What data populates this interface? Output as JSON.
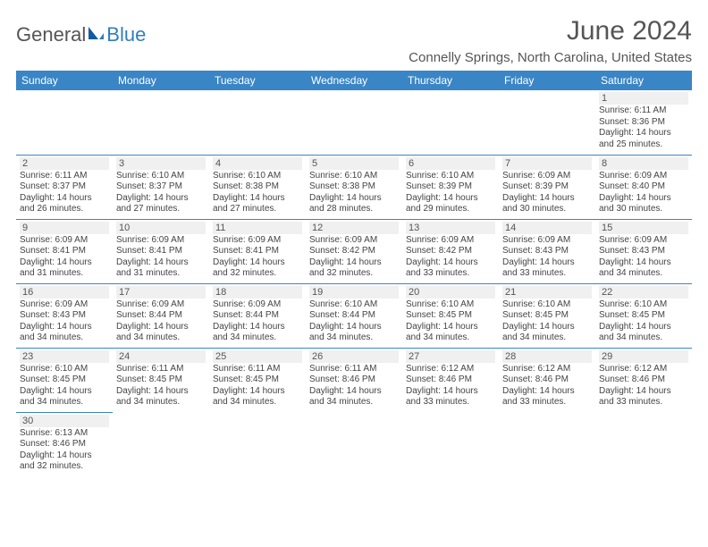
{
  "logo": {
    "text_general": "General",
    "text_blue": "Blue"
  },
  "title": "June 2024",
  "location": "Connelly Springs, North Carolina, United States",
  "colors": {
    "header_bg": "#3a85c6",
    "header_text": "#ffffff",
    "border": "#3a85c6",
    "daynum_bg": "#f0f0f0",
    "text": "#444444",
    "title_text": "#555555",
    "logo_blue": "#2f7ec0"
  },
  "typography": {
    "title_fontsize": 30,
    "location_fontsize": 15,
    "dayheader_fontsize": 12,
    "daynum_fontsize": 11,
    "info_fontsize": 10
  },
  "day_headers": [
    "Sunday",
    "Monday",
    "Tuesday",
    "Wednesday",
    "Thursday",
    "Friday",
    "Saturday"
  ],
  "weeks": [
    [
      null,
      null,
      null,
      null,
      null,
      null,
      {
        "n": "1",
        "sr": "Sunrise: 6:11 AM",
        "ss": "Sunset: 8:36 PM",
        "dl": "Daylight: 14 hours and 25 minutes."
      }
    ],
    [
      {
        "n": "2",
        "sr": "Sunrise: 6:11 AM",
        "ss": "Sunset: 8:37 PM",
        "dl": "Daylight: 14 hours and 26 minutes."
      },
      {
        "n": "3",
        "sr": "Sunrise: 6:10 AM",
        "ss": "Sunset: 8:37 PM",
        "dl": "Daylight: 14 hours and 27 minutes."
      },
      {
        "n": "4",
        "sr": "Sunrise: 6:10 AM",
        "ss": "Sunset: 8:38 PM",
        "dl": "Daylight: 14 hours and 27 minutes."
      },
      {
        "n": "5",
        "sr": "Sunrise: 6:10 AM",
        "ss": "Sunset: 8:38 PM",
        "dl": "Daylight: 14 hours and 28 minutes."
      },
      {
        "n": "6",
        "sr": "Sunrise: 6:10 AM",
        "ss": "Sunset: 8:39 PM",
        "dl": "Daylight: 14 hours and 29 minutes."
      },
      {
        "n": "7",
        "sr": "Sunrise: 6:09 AM",
        "ss": "Sunset: 8:39 PM",
        "dl": "Daylight: 14 hours and 30 minutes."
      },
      {
        "n": "8",
        "sr": "Sunrise: 6:09 AM",
        "ss": "Sunset: 8:40 PM",
        "dl": "Daylight: 14 hours and 30 minutes."
      }
    ],
    [
      {
        "n": "9",
        "sr": "Sunrise: 6:09 AM",
        "ss": "Sunset: 8:41 PM",
        "dl": "Daylight: 14 hours and 31 minutes."
      },
      {
        "n": "10",
        "sr": "Sunrise: 6:09 AM",
        "ss": "Sunset: 8:41 PM",
        "dl": "Daylight: 14 hours and 31 minutes."
      },
      {
        "n": "11",
        "sr": "Sunrise: 6:09 AM",
        "ss": "Sunset: 8:41 PM",
        "dl": "Daylight: 14 hours and 32 minutes."
      },
      {
        "n": "12",
        "sr": "Sunrise: 6:09 AM",
        "ss": "Sunset: 8:42 PM",
        "dl": "Daylight: 14 hours and 32 minutes."
      },
      {
        "n": "13",
        "sr": "Sunrise: 6:09 AM",
        "ss": "Sunset: 8:42 PM",
        "dl": "Daylight: 14 hours and 33 minutes."
      },
      {
        "n": "14",
        "sr": "Sunrise: 6:09 AM",
        "ss": "Sunset: 8:43 PM",
        "dl": "Daylight: 14 hours and 33 minutes."
      },
      {
        "n": "15",
        "sr": "Sunrise: 6:09 AM",
        "ss": "Sunset: 8:43 PM",
        "dl": "Daylight: 14 hours and 34 minutes."
      }
    ],
    [
      {
        "n": "16",
        "sr": "Sunrise: 6:09 AM",
        "ss": "Sunset: 8:43 PM",
        "dl": "Daylight: 14 hours and 34 minutes."
      },
      {
        "n": "17",
        "sr": "Sunrise: 6:09 AM",
        "ss": "Sunset: 8:44 PM",
        "dl": "Daylight: 14 hours and 34 minutes."
      },
      {
        "n": "18",
        "sr": "Sunrise: 6:09 AM",
        "ss": "Sunset: 8:44 PM",
        "dl": "Daylight: 14 hours and 34 minutes."
      },
      {
        "n": "19",
        "sr": "Sunrise: 6:10 AM",
        "ss": "Sunset: 8:44 PM",
        "dl": "Daylight: 14 hours and 34 minutes."
      },
      {
        "n": "20",
        "sr": "Sunrise: 6:10 AM",
        "ss": "Sunset: 8:45 PM",
        "dl": "Daylight: 14 hours and 34 minutes."
      },
      {
        "n": "21",
        "sr": "Sunrise: 6:10 AM",
        "ss": "Sunset: 8:45 PM",
        "dl": "Daylight: 14 hours and 34 minutes."
      },
      {
        "n": "22",
        "sr": "Sunrise: 6:10 AM",
        "ss": "Sunset: 8:45 PM",
        "dl": "Daylight: 14 hours and 34 minutes."
      }
    ],
    [
      {
        "n": "23",
        "sr": "Sunrise: 6:10 AM",
        "ss": "Sunset: 8:45 PM",
        "dl": "Daylight: 14 hours and 34 minutes."
      },
      {
        "n": "24",
        "sr": "Sunrise: 6:11 AM",
        "ss": "Sunset: 8:45 PM",
        "dl": "Daylight: 14 hours and 34 minutes."
      },
      {
        "n": "25",
        "sr": "Sunrise: 6:11 AM",
        "ss": "Sunset: 8:45 PM",
        "dl": "Daylight: 14 hours and 34 minutes."
      },
      {
        "n": "26",
        "sr": "Sunrise: 6:11 AM",
        "ss": "Sunset: 8:46 PM",
        "dl": "Daylight: 14 hours and 34 minutes."
      },
      {
        "n": "27",
        "sr": "Sunrise: 6:12 AM",
        "ss": "Sunset: 8:46 PM",
        "dl": "Daylight: 14 hours and 33 minutes."
      },
      {
        "n": "28",
        "sr": "Sunrise: 6:12 AM",
        "ss": "Sunset: 8:46 PM",
        "dl": "Daylight: 14 hours and 33 minutes."
      },
      {
        "n": "29",
        "sr": "Sunrise: 6:12 AM",
        "ss": "Sunset: 8:46 PM",
        "dl": "Daylight: 14 hours and 33 minutes."
      }
    ],
    [
      {
        "n": "30",
        "sr": "Sunrise: 6:13 AM",
        "ss": "Sunset: 8:46 PM",
        "dl": "Daylight: 14 hours and 32 minutes."
      },
      null,
      null,
      null,
      null,
      null,
      null
    ]
  ]
}
